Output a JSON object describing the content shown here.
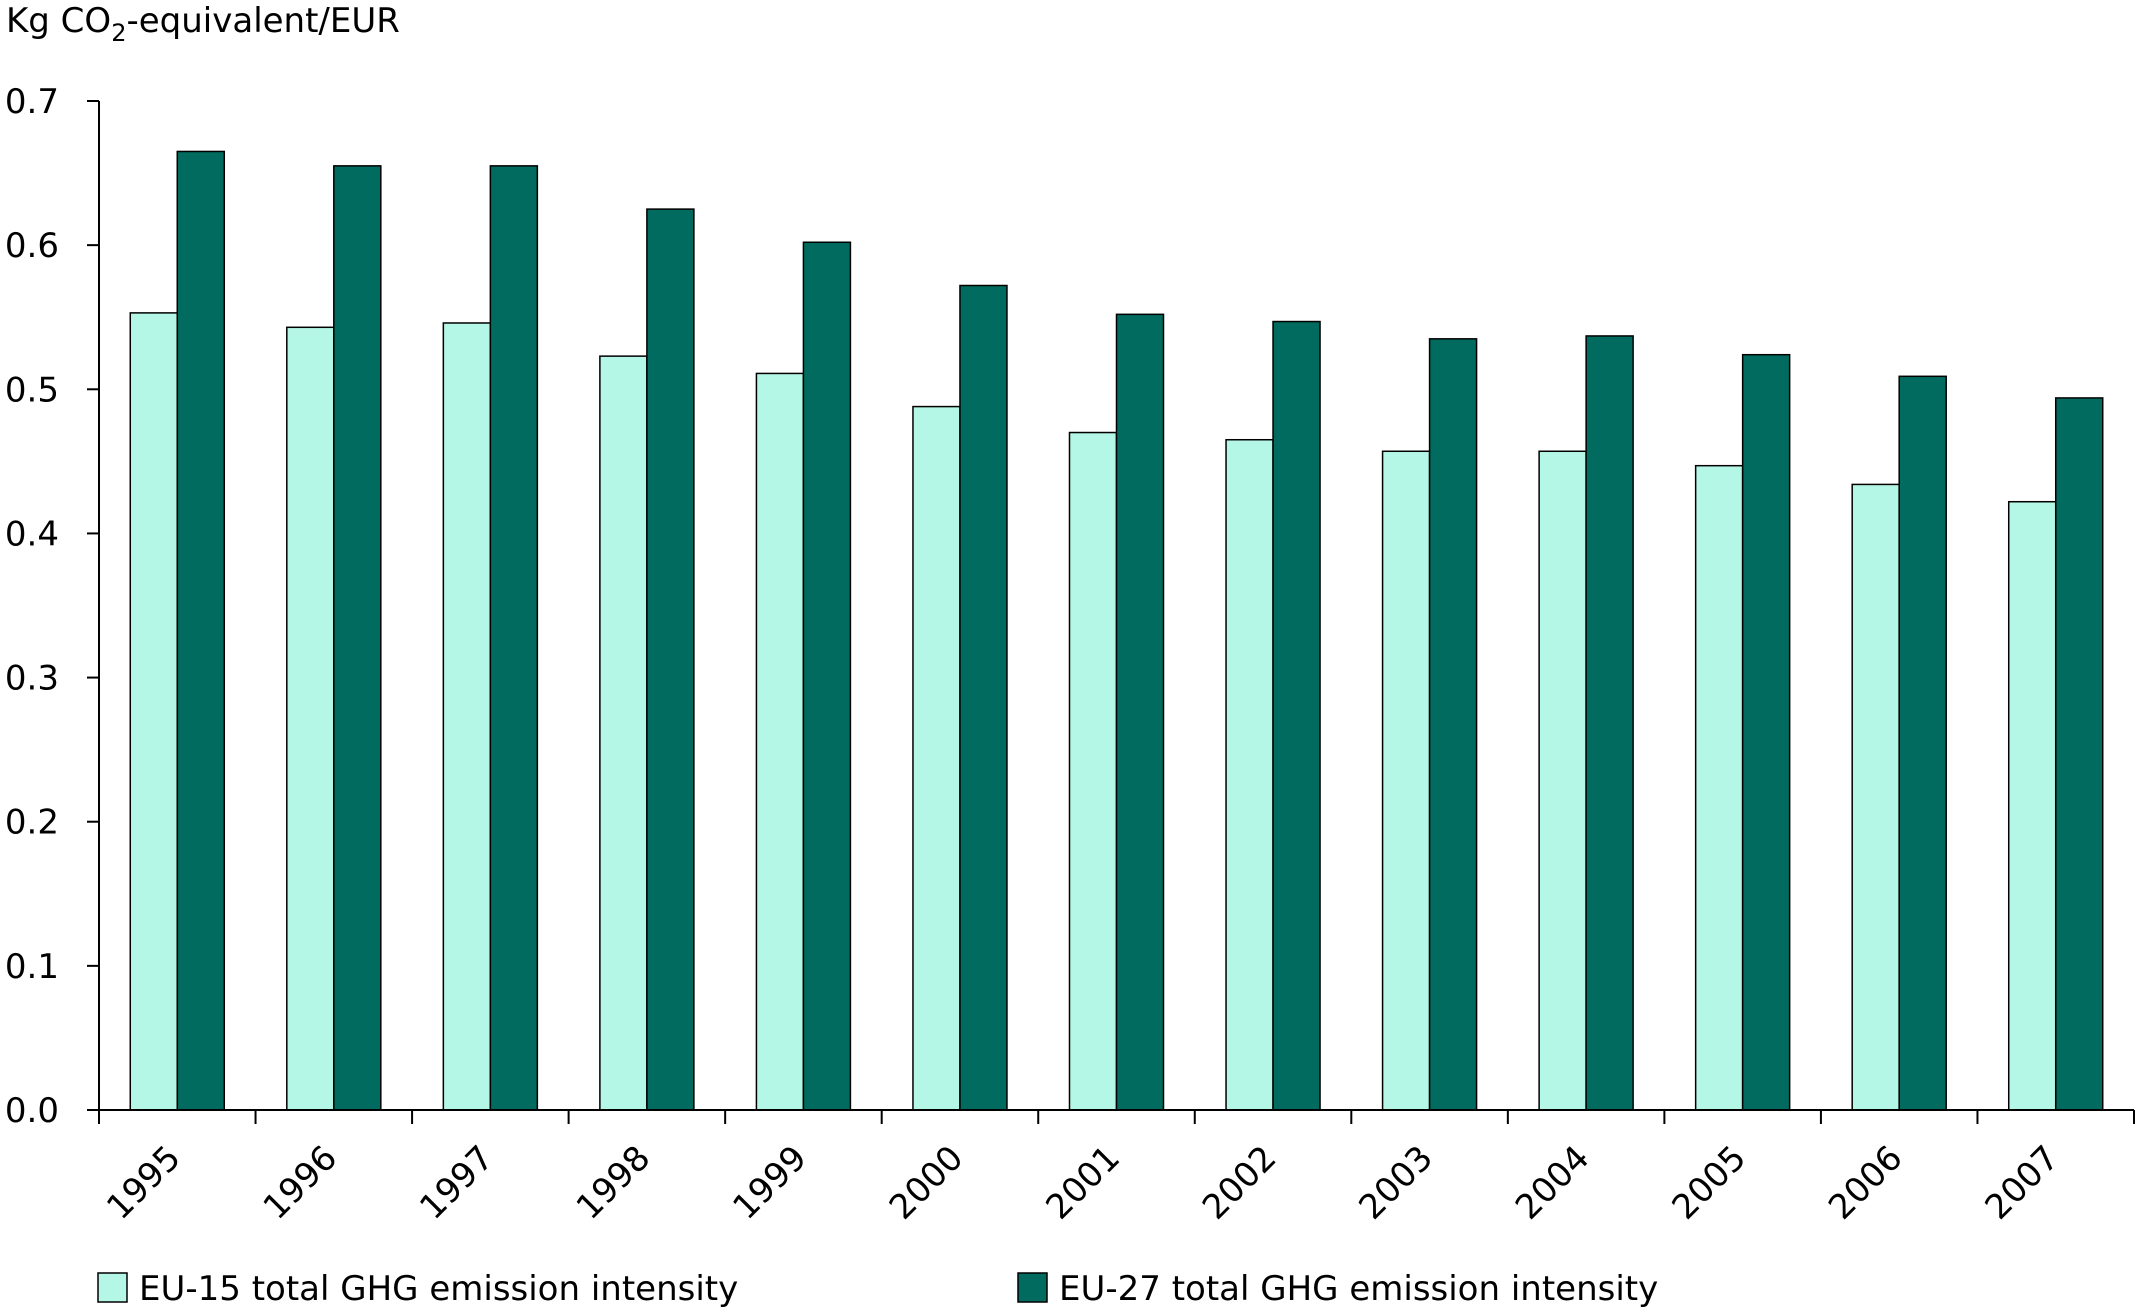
{
  "chart_data": {
    "type": "bar",
    "ylabel_prefix": "Kg CO",
    "ylabel_sub": "2",
    "ylabel_suffix": "-equivalent/EUR",
    "ylim": [
      0,
      0.7
    ],
    "yticks": [
      "0.0",
      "0.1",
      "0.2",
      "0.3",
      "0.4",
      "0.5",
      "0.6",
      "0.7"
    ],
    "categories": [
      "1995",
      "1996",
      "1997",
      "1998",
      "1999",
      "2000",
      "2001",
      "2002",
      "2003",
      "2004",
      "2005",
      "2006",
      "2007"
    ],
    "series": [
      {
        "name": "EU-15 total GHG emission intensity",
        "color": "#b5f7e6",
        "values": [
          0.553,
          0.543,
          0.546,
          0.523,
          0.511,
          0.488,
          0.47,
          0.465,
          0.457,
          0.457,
          0.447,
          0.434,
          0.422
        ]
      },
      {
        "name": "EU-27 total GHG emission intensity",
        "color": "#006b5e",
        "values": [
          0.665,
          0.655,
          0.655,
          0.625,
          0.602,
          0.572,
          0.552,
          0.547,
          0.535,
          0.537,
          0.524,
          0.509,
          0.494
        ]
      }
    ],
    "grid": false,
    "legend": "bottom"
  }
}
